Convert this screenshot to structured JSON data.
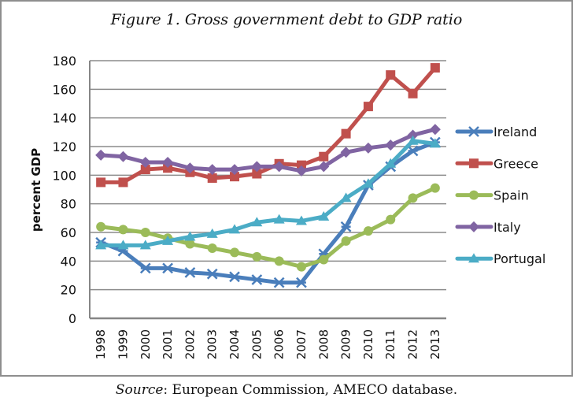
{
  "figure": {
    "title": "Figure 1. Gross government debt to GDP ratio",
    "source_label": "Source",
    "source_text": ": European Commission, AMECO database."
  },
  "chart_data": {
    "type": "line",
    "title": "Figure 1. Gross government debt to GDP ratio",
    "xlabel": "",
    "ylabel": "percent GDP",
    "ylim": [
      0,
      180
    ],
    "yticks": [
      0,
      20,
      40,
      60,
      80,
      100,
      120,
      140,
      160,
      180
    ],
    "grid": true,
    "legend_position": "right",
    "categories": [
      "1998",
      "1999",
      "2000",
      "2001",
      "2002",
      "2003",
      "2004",
      "2005",
      "2006",
      "2007",
      "2008",
      "2009",
      "2010",
      "2011",
      "2012",
      "2013"
    ],
    "series": [
      {
        "name": "Ireland",
        "color": "#4a7ebb",
        "marker": "star",
        "values": [
          53,
          47,
          35,
          35,
          32,
          31,
          29,
          27,
          25,
          25,
          45,
          64,
          93,
          106,
          117,
          123
        ]
      },
      {
        "name": "Greece",
        "color": "#c0504d",
        "marker": "square",
        "values": [
          95,
          95,
          104,
          105,
          102,
          98,
          99,
          101,
          108,
          107,
          113,
          129,
          148,
          170,
          157,
          175
        ]
      },
      {
        "name": "Spain",
        "color": "#9bbb59",
        "marker": "circle",
        "values": [
          64,
          62,
          60,
          56,
          52,
          49,
          46,
          43,
          40,
          36,
          41,
          54,
          61,
          69,
          84,
          91
        ]
      },
      {
        "name": "Italy",
        "color": "#8064a2",
        "marker": "diamond",
        "values": [
          114,
          113,
          109,
          109,
          105,
          104,
          104,
          106,
          106,
          103,
          106,
          116,
          119,
          121,
          128,
          132
        ]
      },
      {
        "name": "Portugal",
        "color": "#4bacc6",
        "marker": "triangle",
        "values": [
          51,
          51,
          51,
          54,
          57,
          59,
          62,
          67,
          69,
          68,
          71,
          84,
          94,
          108,
          124,
          122
        ]
      }
    ]
  }
}
